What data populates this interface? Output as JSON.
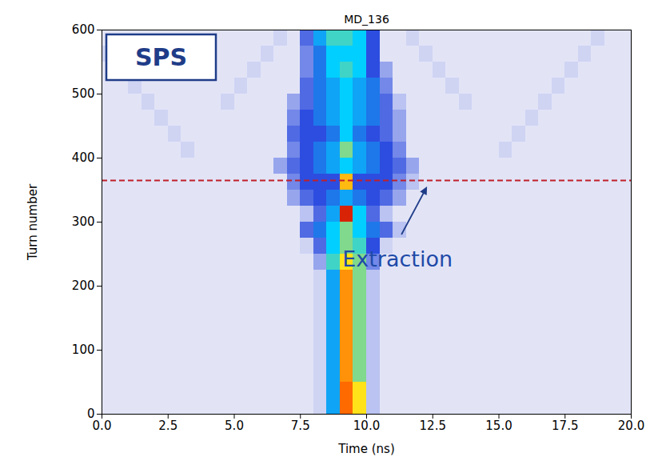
{
  "chart_data": {
    "type": "heatmap",
    "title": "MD_136",
    "x_label": "Time (ns)",
    "y_label": "Turn number",
    "xlim": [
      0,
      20
    ],
    "ylim": [
      0,
      600
    ],
    "xticks": [
      {
        "value": 0,
        "label": "0.0"
      },
      {
        "value": 2.5,
        "label": "2.5"
      },
      {
        "value": 5,
        "label": "5.0"
      },
      {
        "value": 7.5,
        "label": "7.5"
      },
      {
        "value": 10,
        "label": "10.0"
      },
      {
        "value": 12.5,
        "label": "12.5"
      },
      {
        "value": 15,
        "label": "15.0"
      },
      {
        "value": 17.5,
        "label": "17.5"
      },
      {
        "value": 20,
        "label": "20.0"
      }
    ],
    "yticks": [
      0,
      100,
      200,
      300,
      400,
      500,
      600
    ],
    "label_box": "SPS",
    "annotations": [
      {
        "text": "Extraction",
        "x": 12.3,
        "y": 365,
        "line_style": "dashed"
      }
    ],
    "zlim": [
      0,
      1
    ],
    "x_edges": [
      0,
      0.5,
      1,
      1.5,
      2,
      2.5,
      3,
      3.5,
      4,
      4.5,
      5,
      5.5,
      6,
      6.5,
      7,
      7.5,
      8,
      8.5,
      9,
      9.5,
      10,
      10.5,
      11,
      11.5,
      12,
      12.5,
      13,
      13.5,
      14,
      14.5,
      15,
      15.5,
      16,
      16.5,
      17,
      17.5,
      18,
      18.5,
      19,
      19.5,
      20
    ],
    "y_edges": [
      0,
      25,
      50,
      75,
      100,
      125,
      150,
      175,
      200,
      225,
      250,
      275,
      300,
      325,
      350,
      375,
      400,
      425,
      450,
      475,
      500,
      525,
      550,
      575,
      600
    ],
    "z": [
      [
        0.08,
        0.08,
        0.08,
        0.08,
        0.08,
        0.08,
        0.08,
        0.08,
        0.08,
        0.08,
        0.08,
        0.08,
        0.08,
        0.08,
        0.08,
        0.08,
        0.12,
        0.45,
        0.85,
        0.7,
        0.15,
        0.08,
        0.08,
        0.08,
        0.08,
        0.08,
        0.08,
        0.08,
        0.08,
        0.08,
        0.08,
        0.08,
        0.08,
        0.08,
        0.08,
        0.08,
        0.08,
        0.08,
        0.08,
        0.08
      ],
      [
        0.08,
        0.08,
        0.08,
        0.08,
        0.08,
        0.08,
        0.08,
        0.08,
        0.08,
        0.08,
        0.08,
        0.08,
        0.08,
        0.08,
        0.08,
        0.08,
        0.12,
        0.45,
        0.85,
        0.7,
        0.15,
        0.08,
        0.08,
        0.08,
        0.08,
        0.08,
        0.08,
        0.08,
        0.08,
        0.08,
        0.08,
        0.08,
        0.08,
        0.08,
        0.08,
        0.08,
        0.08,
        0.08,
        0.08,
        0.08
      ],
      [
        0.08,
        0.08,
        0.08,
        0.08,
        0.08,
        0.08,
        0.08,
        0.08,
        0.08,
        0.08,
        0.08,
        0.08,
        0.08,
        0.08,
        0.08,
        0.08,
        0.12,
        0.45,
        0.8,
        0.6,
        0.15,
        0.08,
        0.08,
        0.08,
        0.08,
        0.08,
        0.08,
        0.08,
        0.08,
        0.08,
        0.08,
        0.08,
        0.08,
        0.08,
        0.08,
        0.08,
        0.08,
        0.08,
        0.08,
        0.08
      ],
      [
        0.08,
        0.08,
        0.08,
        0.08,
        0.08,
        0.08,
        0.08,
        0.08,
        0.08,
        0.08,
        0.08,
        0.08,
        0.08,
        0.08,
        0.08,
        0.08,
        0.12,
        0.45,
        0.8,
        0.6,
        0.15,
        0.08,
        0.08,
        0.08,
        0.08,
        0.08,
        0.08,
        0.08,
        0.08,
        0.08,
        0.08,
        0.08,
        0.08,
        0.08,
        0.08,
        0.08,
        0.08,
        0.08,
        0.08,
        0.08
      ],
      [
        0.08,
        0.08,
        0.08,
        0.08,
        0.08,
        0.08,
        0.08,
        0.08,
        0.08,
        0.08,
        0.08,
        0.08,
        0.08,
        0.08,
        0.08,
        0.08,
        0.12,
        0.45,
        0.8,
        0.6,
        0.15,
        0.08,
        0.08,
        0.08,
        0.08,
        0.08,
        0.08,
        0.08,
        0.08,
        0.08,
        0.08,
        0.08,
        0.08,
        0.08,
        0.08,
        0.08,
        0.08,
        0.08,
        0.08,
        0.08
      ],
      [
        0.08,
        0.08,
        0.08,
        0.08,
        0.08,
        0.08,
        0.08,
        0.08,
        0.08,
        0.08,
        0.08,
        0.08,
        0.08,
        0.08,
        0.08,
        0.08,
        0.12,
        0.45,
        0.8,
        0.6,
        0.15,
        0.08,
        0.08,
        0.08,
        0.08,
        0.08,
        0.08,
        0.08,
        0.08,
        0.08,
        0.08,
        0.08,
        0.08,
        0.08,
        0.08,
        0.08,
        0.08,
        0.08,
        0.08,
        0.08
      ],
      [
        0.08,
        0.08,
        0.08,
        0.08,
        0.08,
        0.08,
        0.08,
        0.08,
        0.08,
        0.08,
        0.08,
        0.08,
        0.08,
        0.08,
        0.08,
        0.08,
        0.12,
        0.45,
        0.8,
        0.6,
        0.15,
        0.08,
        0.08,
        0.08,
        0.08,
        0.08,
        0.08,
        0.08,
        0.08,
        0.08,
        0.08,
        0.08,
        0.08,
        0.08,
        0.08,
        0.08,
        0.08,
        0.08,
        0.08,
        0.08
      ],
      [
        0.08,
        0.08,
        0.08,
        0.08,
        0.08,
        0.08,
        0.08,
        0.08,
        0.08,
        0.08,
        0.08,
        0.08,
        0.08,
        0.08,
        0.08,
        0.08,
        0.12,
        0.45,
        0.8,
        0.6,
        0.15,
        0.08,
        0.08,
        0.08,
        0.08,
        0.08,
        0.08,
        0.08,
        0.08,
        0.08,
        0.08,
        0.08,
        0.08,
        0.08,
        0.08,
        0.08,
        0.08,
        0.08,
        0.08,
        0.08
      ],
      [
        0.08,
        0.08,
        0.08,
        0.08,
        0.08,
        0.08,
        0.08,
        0.08,
        0.08,
        0.08,
        0.08,
        0.08,
        0.08,
        0.08,
        0.08,
        0.08,
        0.12,
        0.45,
        0.8,
        0.6,
        0.15,
        0.08,
        0.08,
        0.08,
        0.08,
        0.08,
        0.08,
        0.08,
        0.08,
        0.08,
        0.08,
        0.08,
        0.08,
        0.08,
        0.08,
        0.08,
        0.08,
        0.08,
        0.08,
        0.08
      ],
      [
        0.08,
        0.08,
        0.08,
        0.08,
        0.08,
        0.08,
        0.08,
        0.08,
        0.08,
        0.08,
        0.08,
        0.08,
        0.08,
        0.08,
        0.08,
        0.08,
        0.2,
        0.55,
        0.7,
        0.6,
        0.25,
        0.08,
        0.08,
        0.08,
        0.08,
        0.08,
        0.08,
        0.08,
        0.08,
        0.08,
        0.08,
        0.08,
        0.08,
        0.08,
        0.08,
        0.08,
        0.08,
        0.08,
        0.08,
        0.08
      ],
      [
        0.08,
        0.08,
        0.08,
        0.08,
        0.08,
        0.08,
        0.08,
        0.08,
        0.08,
        0.08,
        0.08,
        0.08,
        0.08,
        0.08,
        0.08,
        0.12,
        0.3,
        0.5,
        0.6,
        0.55,
        0.35,
        0.12,
        0.08,
        0.08,
        0.08,
        0.08,
        0.08,
        0.08,
        0.08,
        0.08,
        0.08,
        0.08,
        0.08,
        0.08,
        0.08,
        0.08,
        0.08,
        0.08,
        0.08,
        0.08
      ],
      [
        0.08,
        0.08,
        0.08,
        0.08,
        0.08,
        0.08,
        0.08,
        0.08,
        0.08,
        0.08,
        0.08,
        0.08,
        0.08,
        0.08,
        0.08,
        0.3,
        0.4,
        0.5,
        0.6,
        0.5,
        0.4,
        0.3,
        0.15,
        0.08,
        0.08,
        0.08,
        0.08,
        0.08,
        0.08,
        0.08,
        0.08,
        0.08,
        0.08,
        0.08,
        0.08,
        0.08,
        0.08,
        0.08,
        0.08,
        0.08
      ],
      [
        0.08,
        0.08,
        0.08,
        0.08,
        0.08,
        0.08,
        0.08,
        0.08,
        0.08,
        0.08,
        0.08,
        0.08,
        0.08,
        0.08,
        0.08,
        0.15,
        0.3,
        0.45,
        0.95,
        0.5,
        0.3,
        0.15,
        0.08,
        0.08,
        0.08,
        0.08,
        0.08,
        0.08,
        0.08,
        0.08,
        0.08,
        0.08,
        0.08,
        0.08,
        0.08,
        0.08,
        0.08,
        0.08,
        0.08,
        0.08
      ],
      [
        0.08,
        0.08,
        0.08,
        0.08,
        0.08,
        0.08,
        0.08,
        0.08,
        0.08,
        0.08,
        0.08,
        0.08,
        0.08,
        0.08,
        0.2,
        0.3,
        0.35,
        0.4,
        0.45,
        0.4,
        0.35,
        0.3,
        0.2,
        0.08,
        0.08,
        0.08,
        0.08,
        0.08,
        0.08,
        0.08,
        0.08,
        0.08,
        0.08,
        0.08,
        0.08,
        0.08,
        0.08,
        0.08,
        0.08,
        0.08
      ],
      [
        0.08,
        0.08,
        0.08,
        0.08,
        0.08,
        0.08,
        0.08,
        0.08,
        0.08,
        0.08,
        0.08,
        0.08,
        0.08,
        0.08,
        0.25,
        0.35,
        0.35,
        0.35,
        0.75,
        0.35,
        0.35,
        0.35,
        0.25,
        0.15,
        0.08,
        0.08,
        0.08,
        0.08,
        0.08,
        0.08,
        0.08,
        0.08,
        0.08,
        0.08,
        0.08,
        0.08,
        0.08,
        0.08,
        0.08,
        0.08
      ],
      [
        0.08,
        0.08,
        0.08,
        0.08,
        0.08,
        0.08,
        0.08,
        0.08,
        0.08,
        0.08,
        0.08,
        0.08,
        0.08,
        0.2,
        0.3,
        0.35,
        0.4,
        0.45,
        0.5,
        0.45,
        0.4,
        0.35,
        0.3,
        0.2,
        0.08,
        0.08,
        0.08,
        0.08,
        0.08,
        0.08,
        0.08,
        0.08,
        0.08,
        0.08,
        0.08,
        0.08,
        0.08,
        0.08,
        0.08,
        0.08
      ],
      [
        0.08,
        0.08,
        0.08,
        0.08,
        0.08,
        0.08,
        0.12,
        0.08,
        0.08,
        0.08,
        0.08,
        0.08,
        0.08,
        0.08,
        0.25,
        0.35,
        0.4,
        0.45,
        0.6,
        0.45,
        0.4,
        0.35,
        0.25,
        0.08,
        0.08,
        0.08,
        0.08,
        0.08,
        0.08,
        0.08,
        0.12,
        0.08,
        0.08,
        0.08,
        0.08,
        0.08,
        0.08,
        0.08,
        0.08,
        0.08
      ],
      [
        0.08,
        0.08,
        0.08,
        0.08,
        0.08,
        0.12,
        0.08,
        0.08,
        0.08,
        0.08,
        0.08,
        0.08,
        0.08,
        0.08,
        0.3,
        0.35,
        0.35,
        0.4,
        0.5,
        0.4,
        0.35,
        0.3,
        0.2,
        0.08,
        0.08,
        0.08,
        0.08,
        0.08,
        0.08,
        0.08,
        0.08,
        0.12,
        0.08,
        0.08,
        0.08,
        0.08,
        0.08,
        0.08,
        0.08,
        0.08
      ],
      [
        0.08,
        0.08,
        0.08,
        0.08,
        0.12,
        0.08,
        0.08,
        0.08,
        0.08,
        0.08,
        0.08,
        0.08,
        0.08,
        0.08,
        0.25,
        0.35,
        0.4,
        0.45,
        0.5,
        0.45,
        0.4,
        0.3,
        0.2,
        0.08,
        0.08,
        0.08,
        0.08,
        0.08,
        0.08,
        0.08,
        0.08,
        0.08,
        0.12,
        0.08,
        0.08,
        0.08,
        0.08,
        0.08,
        0.08,
        0.08
      ],
      [
        0.08,
        0.08,
        0.08,
        0.12,
        0.08,
        0.08,
        0.08,
        0.08,
        0.08,
        0.12,
        0.08,
        0.08,
        0.08,
        0.08,
        0.2,
        0.3,
        0.4,
        0.45,
        0.5,
        0.45,
        0.4,
        0.3,
        0.15,
        0.08,
        0.08,
        0.08,
        0.08,
        0.12,
        0.08,
        0.08,
        0.08,
        0.08,
        0.08,
        0.12,
        0.08,
        0.08,
        0.08,
        0.08,
        0.08,
        0.08
      ],
      [
        0.08,
        0.08,
        0.12,
        0.08,
        0.08,
        0.08,
        0.08,
        0.08,
        0.08,
        0.08,
        0.12,
        0.08,
        0.08,
        0.08,
        0.08,
        0.3,
        0.4,
        0.45,
        0.5,
        0.45,
        0.4,
        0.25,
        0.08,
        0.08,
        0.08,
        0.08,
        0.12,
        0.08,
        0.08,
        0.08,
        0.08,
        0.08,
        0.08,
        0.08,
        0.12,
        0.08,
        0.08,
        0.08,
        0.08,
        0.08
      ],
      [
        0.08,
        0.12,
        0.08,
        0.08,
        0.08,
        0.08,
        0.08,
        0.08,
        0.08,
        0.08,
        0.08,
        0.12,
        0.08,
        0.08,
        0.08,
        0.25,
        0.4,
        0.5,
        0.55,
        0.5,
        0.35,
        0.2,
        0.08,
        0.08,
        0.08,
        0.12,
        0.08,
        0.08,
        0.08,
        0.08,
        0.08,
        0.08,
        0.08,
        0.08,
        0.08,
        0.12,
        0.08,
        0.08,
        0.08,
        0.08
      ],
      [
        0.12,
        0.08,
        0.08,
        0.08,
        0.08,
        0.08,
        0.08,
        0.08,
        0.08,
        0.08,
        0.08,
        0.08,
        0.12,
        0.08,
        0.08,
        0.25,
        0.4,
        0.5,
        0.5,
        0.5,
        0.35,
        0.08,
        0.08,
        0.08,
        0.12,
        0.08,
        0.08,
        0.08,
        0.08,
        0.08,
        0.08,
        0.08,
        0.08,
        0.08,
        0.08,
        0.08,
        0.12,
        0.08,
        0.08,
        0.08
      ],
      [
        0.08,
        0.08,
        0.08,
        0.08,
        0.08,
        0.08,
        0.08,
        0.08,
        0.08,
        0.08,
        0.08,
        0.08,
        0.08,
        0.12,
        0.08,
        0.3,
        0.45,
        0.55,
        0.55,
        0.5,
        0.35,
        0.08,
        0.08,
        0.12,
        0.08,
        0.08,
        0.08,
        0.08,
        0.08,
        0.08,
        0.08,
        0.08,
        0.08,
        0.08,
        0.08,
        0.08,
        0.08,
        0.12,
        0.08,
        0.08
      ]
    ]
  }
}
